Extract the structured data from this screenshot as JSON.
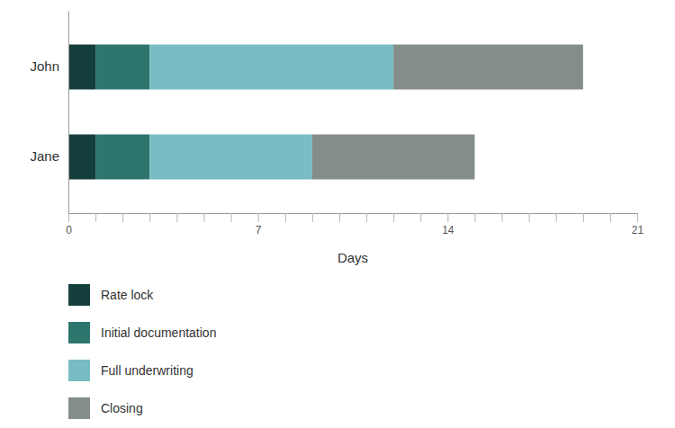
{
  "chart_data": {
    "type": "bar",
    "orientation": "horizontal",
    "stacked": true,
    "categories": [
      "John",
      "Jane"
    ],
    "series": [
      {
        "name": "Rate lock",
        "color": "#153f3c",
        "values": [
          1,
          1
        ]
      },
      {
        "name": "Initial documentation",
        "color": "#2e756d",
        "values": [
          2,
          2
        ]
      },
      {
        "name": "Full underwriting",
        "color": "#79bcc3",
        "values": [
          9,
          6
        ]
      },
      {
        "name": "Closing",
        "color": "#858d8a",
        "values": [
          7,
          6
        ]
      }
    ],
    "x_label": "Days",
    "xlim": [
      0,
      21
    ],
    "xticks": [
      0,
      {
        "value": 1,
        "label": null
      },
      {
        "value": 2,
        "label": null
      },
      {
        "value": 3,
        "label": null
      },
      {
        "value": 4,
        "label": null
      },
      {
        "value": 5,
        "label": null
      },
      {
        "value": 6,
        "label": null
      },
      7,
      {
        "value": 8,
        "label": null
      },
      {
        "value": 9,
        "label": null
      },
      {
        "value": 10,
        "label": null
      },
      {
        "value": 11,
        "label": null
      },
      {
        "value": 12,
        "label": null
      },
      {
        "value": 13,
        "label": null
      },
      14,
      {
        "value": 15,
        "label": null
      },
      {
        "value": 16,
        "label": null
      },
      {
        "value": 17,
        "label": null
      },
      {
        "value": 18,
        "label": null
      },
      {
        "value": 19,
        "label": null
      },
      {
        "value": 20,
        "label": null
      },
      21
    ],
    "legend": "bottom"
  }
}
